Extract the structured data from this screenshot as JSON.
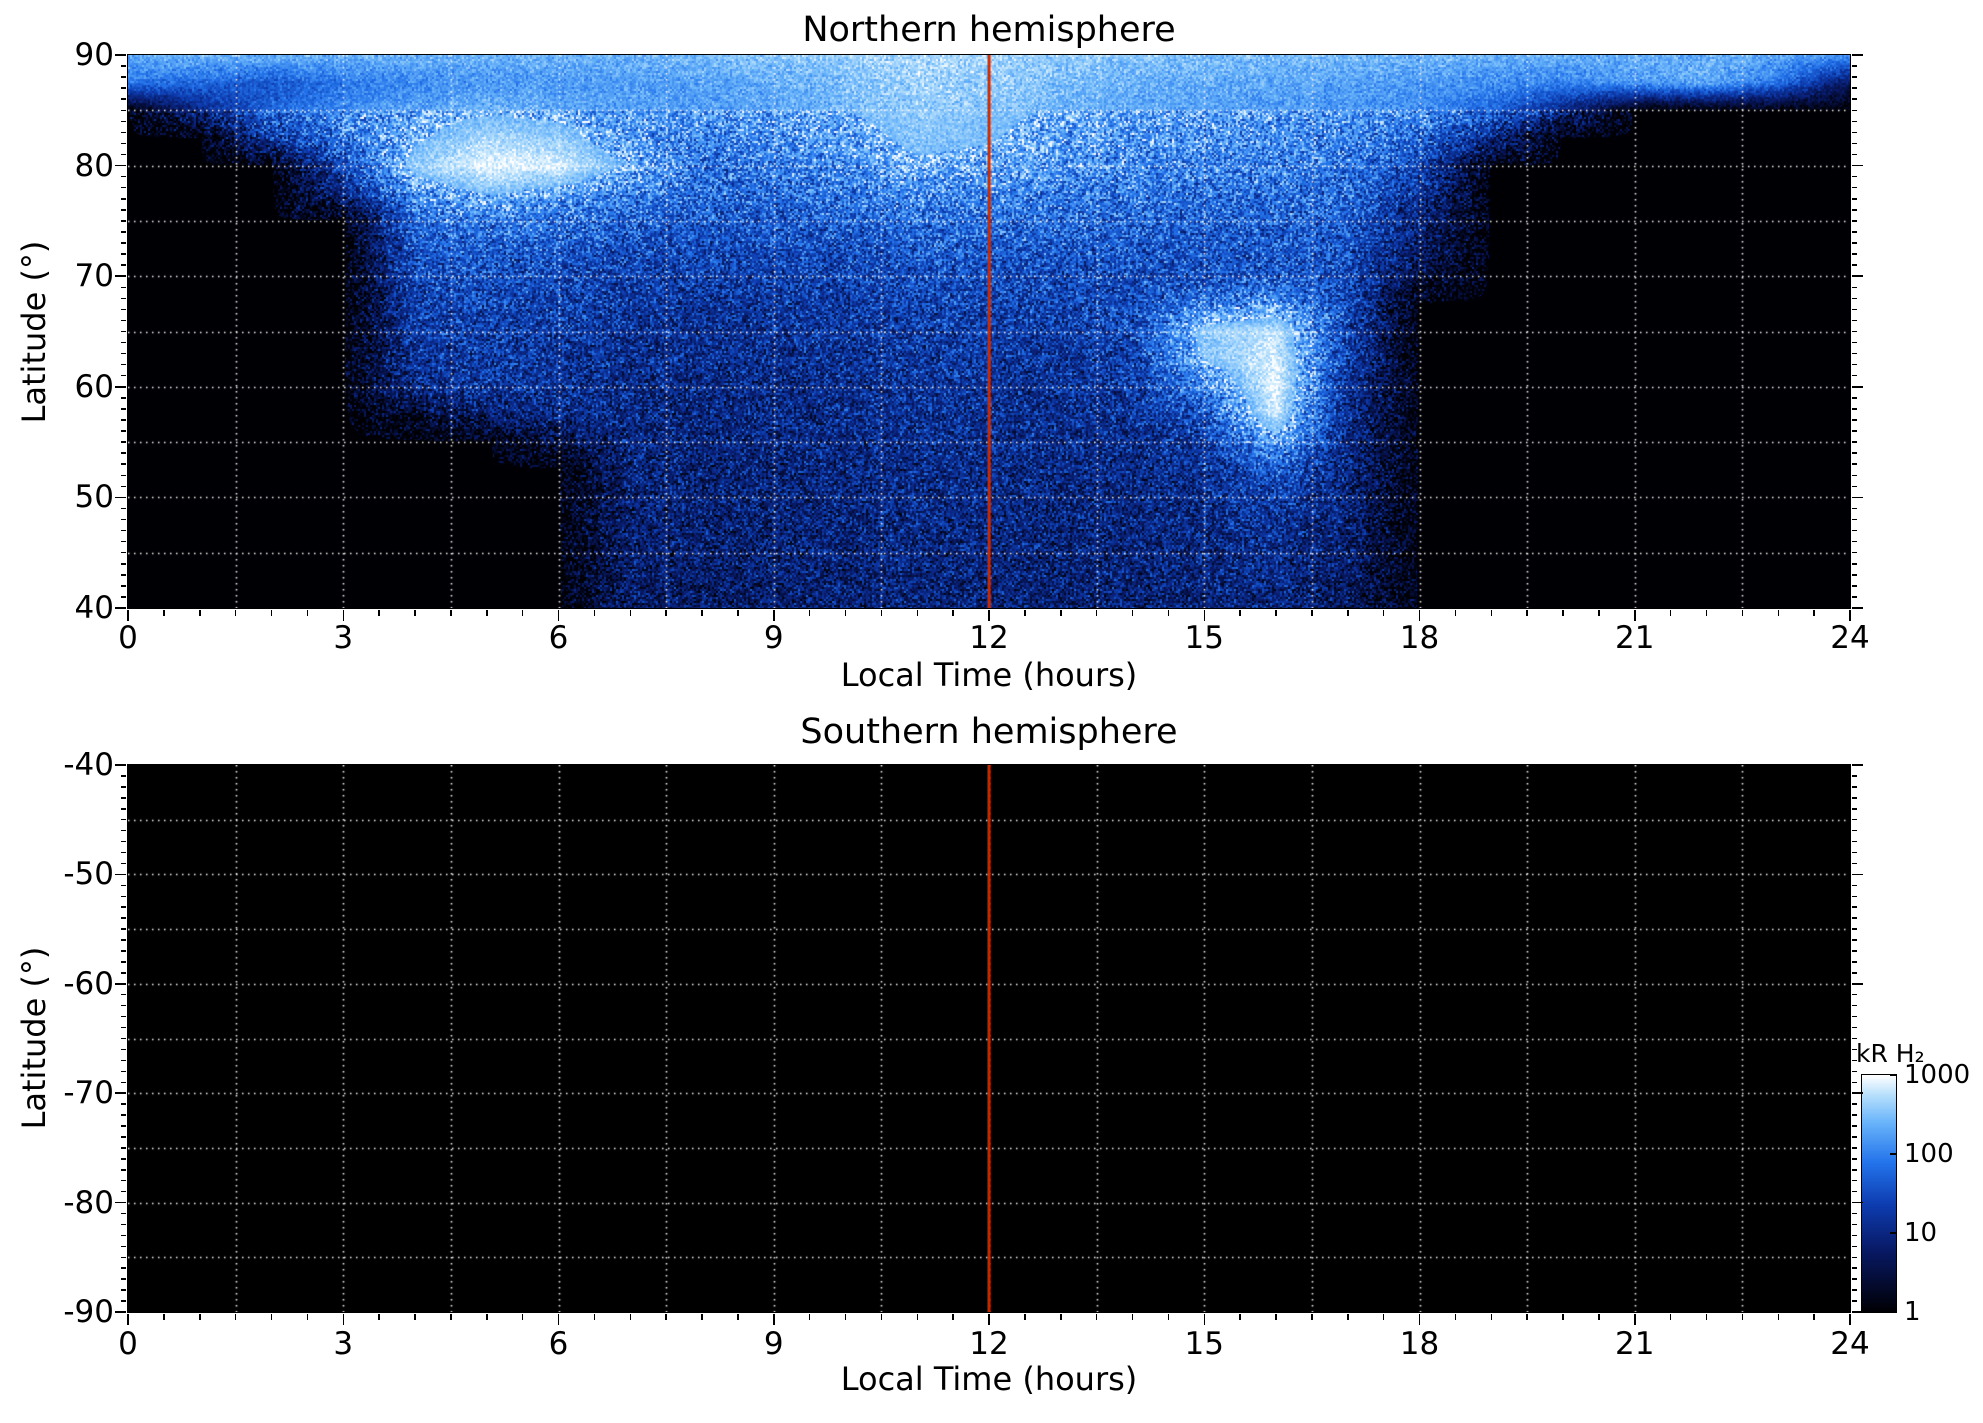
{
  "figure": {
    "background": "#ffffff",
    "colors": {
      "plot_background": "#000000",
      "grid": "#ffffff",
      "marker_line": "#cc2a00",
      "axis": "#000000"
    }
  },
  "colorbar": {
    "label": "kR H₂",
    "scale": "log",
    "range": [
      1,
      1000
    ],
    "tick_values": [
      1000,
      100,
      10,
      1
    ],
    "tick_labels": [
      "1000",
      "100",
      "10",
      "1"
    ],
    "gradient": [
      "#000004",
      "#081862",
      "#0d3caf",
      "#2373eb",
      "#69b4fa",
      "#b9e1fc",
      "#ffffff"
    ]
  },
  "chart_data": [
    {
      "type": "heatmap",
      "title": "Northern hemisphere",
      "xlabel": "Local Time (hours)",
      "ylabel": "Latitude (°)",
      "xlim": [
        0,
        24
      ],
      "ylim": [
        40,
        90
      ],
      "x_ticks": [
        0,
        3,
        6,
        9,
        12,
        15,
        18,
        21,
        24
      ],
      "x_tick_labels": [
        "0",
        "3",
        "6",
        "9",
        "12",
        "15",
        "18",
        "21",
        "24"
      ],
      "y_ticks": [
        90,
        80,
        70,
        60,
        50,
        40
      ],
      "y_tick_labels": [
        "90",
        "80",
        "70",
        "60",
        "50",
        "40"
      ],
      "grid": {
        "x_step_hours": 1.5,
        "y_step_deg": 5,
        "style": "dotted",
        "color": "#ffffff"
      },
      "marker_line_x": 12,
      "value_units": "kR H₂",
      "value_scale": "log",
      "value_range": [
        1,
        1000
      ],
      "description": "H2 emission brightness vs local time and latitude; bright polar band above 85°, white dawn arc near 5h/80°, bright afternoon spot near 16h/55-67°, black (no data) pre-dawn below ~75° before 7h and post-dusk after ~17.5h",
      "x_bins": [
        0,
        1,
        2,
        3,
        4,
        5,
        6,
        7,
        8,
        9,
        10,
        11,
        12,
        13,
        14,
        15,
        16,
        17,
        18,
        19,
        20,
        21,
        22,
        23,
        24
      ],
      "y_bins": [
        90,
        87.5,
        85,
        82.5,
        80,
        77.5,
        75,
        72.5,
        70,
        67.5,
        65,
        62.5,
        60,
        57.5,
        55,
        52.5,
        50,
        47.5,
        45,
        42.5,
        40
      ],
      "values_kR": [
        [
          200,
          250,
          250,
          250,
          250,
          250,
          250,
          250,
          300,
          350,
          400,
          500,
          450,
          400,
          350,
          300,
          300,
          280,
          260,
          250,
          240,
          230,
          250,
          200,
          150
        ],
        [
          80,
          60,
          40,
          80,
          120,
          150,
          160,
          170,
          180,
          220,
          300,
          450,
          400,
          300,
          250,
          220,
          200,
          180,
          150,
          120,
          100,
          150,
          200,
          80,
          5
        ],
        [
          1,
          10,
          60,
          120,
          200,
          250,
          220,
          180,
          160,
          200,
          280,
          400,
          350,
          250,
          200,
          180,
          160,
          150,
          120,
          60,
          10,
          1,
          1,
          1,
          1
        ],
        [
          1,
          1,
          20,
          80,
          250,
          500,
          400,
          150,
          100,
          130,
          200,
          350,
          300,
          200,
          150,
          130,
          120,
          110,
          60,
          10,
          1,
          1,
          1,
          1,
          1
        ],
        [
          1,
          1,
          1,
          30,
          400,
          900,
          800,
          250,
          80,
          90,
          130,
          250,
          220,
          140,
          110,
          100,
          90,
          80,
          30,
          1,
          1,
          1,
          1,
          1,
          1
        ],
        [
          1,
          1,
          1,
          10,
          150,
          300,
          200,
          90,
          60,
          60,
          80,
          120,
          110,
          90,
          80,
          70,
          70,
          60,
          15,
          1,
          1,
          1,
          1,
          1,
          1
        ],
        [
          1,
          1,
          1,
          1,
          60,
          90,
          70,
          50,
          40,
          40,
          50,
          70,
          70,
          60,
          55,
          50,
          50,
          45,
          8,
          1,
          1,
          1,
          1,
          1,
          1
        ],
        [
          1,
          1,
          1,
          1,
          40,
          50,
          40,
          30,
          28,
          28,
          35,
          45,
          45,
          40,
          40,
          40,
          40,
          35,
          5,
          1,
          1,
          1,
          1,
          1,
          1
        ],
        [
          1,
          1,
          1,
          1,
          30,
          35,
          30,
          22,
          20,
          20,
          25,
          32,
          32,
          30,
          30,
          35,
          40,
          30,
          3,
          1,
          1,
          1,
          1,
          1,
          1
        ],
        [
          1,
          1,
          1,
          1,
          22,
          28,
          22,
          18,
          15,
          16,
          20,
          25,
          25,
          22,
          30,
          90,
          150,
          30,
          1,
          1,
          1,
          1,
          1,
          1,
          1
        ],
        [
          1,
          1,
          1,
          1,
          18,
          22,
          18,
          14,
          13,
          14,
          16,
          20,
          20,
          18,
          30,
          400,
          600,
          25,
          1,
          1,
          1,
          1,
          1,
          1,
          1
        ],
        [
          1,
          1,
          1,
          1,
          15,
          18,
          15,
          12,
          11,
          12,
          14,
          17,
          17,
          15,
          25,
          300,
          800,
          20,
          1,
          1,
          1,
          1,
          1,
          1,
          1
        ],
        [
          1,
          1,
          1,
          1,
          12,
          16,
          13,
          11,
          10,
          10,
          12,
          15,
          15,
          13,
          18,
          100,
          900,
          15,
          1,
          1,
          1,
          1,
          1,
          1,
          1
        ],
        [
          1,
          1,
          1,
          1,
          2,
          8,
          10,
          10,
          9,
          10,
          11,
          13,
          13,
          12,
          14,
          40,
          700,
          12,
          1,
          1,
          1,
          1,
          1,
          1,
          1
        ],
        [
          1,
          1,
          1,
          1,
          1,
          1,
          3,
          9,
          9,
          9,
          10,
          12,
          12,
          11,
          12,
          20,
          200,
          10,
          1,
          1,
          1,
          1,
          1,
          1,
          1
        ],
        [
          1,
          1,
          1,
          1,
          1,
          1,
          1,
          8,
          8,
          8,
          9,
          11,
          11,
          10,
          10,
          14,
          40,
          9,
          1,
          1,
          1,
          1,
          1,
          1,
          1
        ],
        [
          1,
          1,
          1,
          1,
          1,
          1,
          1,
          7,
          8,
          8,
          9,
          10,
          10,
          9,
          9,
          12,
          18,
          8,
          1,
          1,
          1,
          1,
          1,
          1,
          1
        ],
        [
          1,
          1,
          1,
          1,
          1,
          1,
          1,
          7,
          7,
          7,
          8,
          9,
          9,
          9,
          9,
          10,
          14,
          7,
          1,
          1,
          1,
          1,
          1,
          1,
          1
        ],
        [
          1,
          1,
          1,
          1,
          1,
          1,
          1,
          6,
          7,
          7,
          8,
          9,
          9,
          8,
          8,
          9,
          12,
          6,
          1,
          1,
          1,
          1,
          1,
          1,
          1
        ],
        [
          1,
          1,
          1,
          1,
          1,
          1,
          1,
          6,
          6,
          7,
          7,
          8,
          8,
          8,
          8,
          9,
          10,
          5,
          1,
          1,
          1,
          1,
          1,
          1,
          1
        ],
        [
          1,
          1,
          1,
          1,
          1,
          1,
          1,
          6,
          6,
          6,
          7,
          8,
          8,
          7,
          7,
          8,
          9,
          5,
          1,
          1,
          1,
          1,
          1,
          1,
          1
        ]
      ]
    },
    {
      "type": "heatmap",
      "title": "Southern hemisphere",
      "xlabel": "Local Time (hours)",
      "ylabel": "Latitude (°)",
      "xlim": [
        0,
        24
      ],
      "ylim": [
        -90,
        -40
      ],
      "x_ticks": [
        0,
        3,
        6,
        9,
        12,
        15,
        18,
        21,
        24
      ],
      "x_tick_labels": [
        "0",
        "3",
        "6",
        "9",
        "12",
        "15",
        "18",
        "21",
        "24"
      ],
      "y_ticks": [
        -40,
        -50,
        -60,
        -70,
        -80,
        -90
      ],
      "y_tick_labels": [
        "-40",
        "-50",
        "-60",
        "-70",
        "-80",
        "-90"
      ],
      "grid": {
        "x_step_hours": 1.5,
        "y_step_deg": 5,
        "style": "dotted",
        "color": "#ffffff"
      },
      "marker_line_x": 12,
      "value_units": "kR H₂",
      "value_scale": "log",
      "value_range": [
        1,
        1000
      ],
      "description": "No emission detected; entire panel at background level (black, ≤1 kR)",
      "uniform_value_kR": 1
    }
  ]
}
